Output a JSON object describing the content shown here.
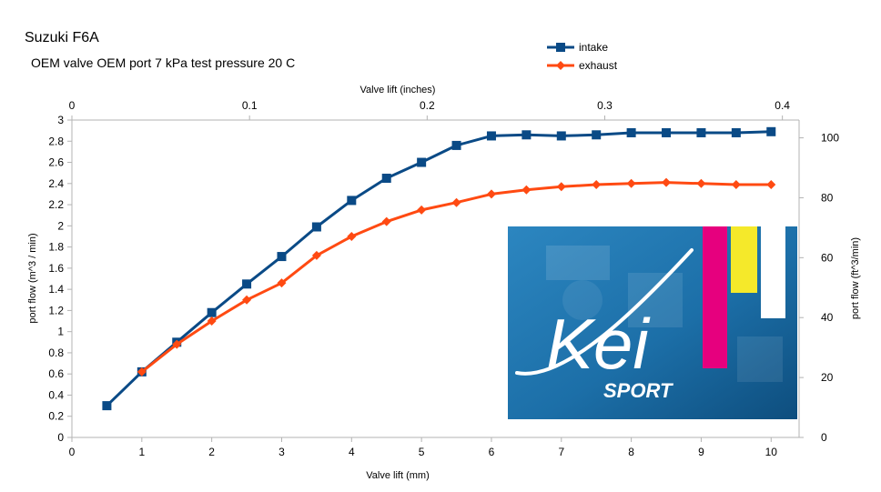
{
  "chart_data": {
    "type": "line",
    "title": "Suzuki F6A",
    "subtitle": "OEM valve OEM port 7 kPa test pressure 20 C",
    "xlabel": "Valve lift (mm)",
    "ylabel": "port flow (m^3 / min)",
    "x2label": "Valve lift (inches)",
    "y2label": "port flow (ft^3/min)",
    "xlim": [
      0,
      10.4
    ],
    "ylim": [
      0,
      3
    ],
    "x2lim": [
      0,
      0.4094
    ],
    "y2lim": [
      0,
      105.94
    ],
    "xticks": [
      0,
      1,
      2,
      3,
      4,
      5,
      6,
      7,
      8,
      9,
      10
    ],
    "yticks": [
      0,
      0.2,
      0.4,
      0.6,
      0.8,
      1,
      1.2,
      1.4,
      1.6,
      1.8,
      2,
      2.2,
      2.4,
      2.6,
      2.8,
      3
    ],
    "x2ticks": [
      0,
      0.1,
      0.2,
      0.3,
      0.4
    ],
    "y2ticks": [
      0,
      20,
      40,
      60,
      80,
      100
    ],
    "grid": false,
    "legend_position": "top-right",
    "series": [
      {
        "name": "intake",
        "color": "#0a4a86",
        "marker": "square",
        "x": [
          0.5,
          1,
          1.5,
          2,
          2.5,
          3,
          3.5,
          4,
          4.5,
          5,
          5.5,
          6,
          6.5,
          7,
          7.5,
          8,
          8.5,
          9,
          9.5,
          10
        ],
        "y": [
          0.3,
          0.62,
          0.9,
          1.18,
          1.45,
          1.71,
          1.99,
          2.24,
          2.45,
          2.6,
          2.76,
          2.85,
          2.86,
          2.85,
          2.86,
          2.88,
          2.88,
          2.88,
          2.88,
          2.89
        ]
      },
      {
        "name": "exhaust",
        "color": "#ff4a12",
        "marker": "diamond",
        "x": [
          1,
          1.5,
          2,
          2.5,
          3,
          3.5,
          4,
          4.5,
          5,
          5.5,
          6,
          6.5,
          7,
          7.5,
          8,
          8.5,
          9,
          9.5,
          10
        ],
        "y": [
          0.62,
          0.88,
          1.1,
          1.3,
          1.46,
          1.72,
          1.9,
          2.04,
          2.15,
          2.22,
          2.3,
          2.34,
          2.37,
          2.39,
          2.4,
          2.41,
          2.4,
          2.39,
          2.39
        ]
      }
    ]
  },
  "logo": {
    "text": "Kei",
    "subtext": "SPORT",
    "bg_color": "#1c6fa8",
    "stripe_colors": [
      "#e6007e",
      "#f5e92a",
      "#ffffff"
    ]
  }
}
